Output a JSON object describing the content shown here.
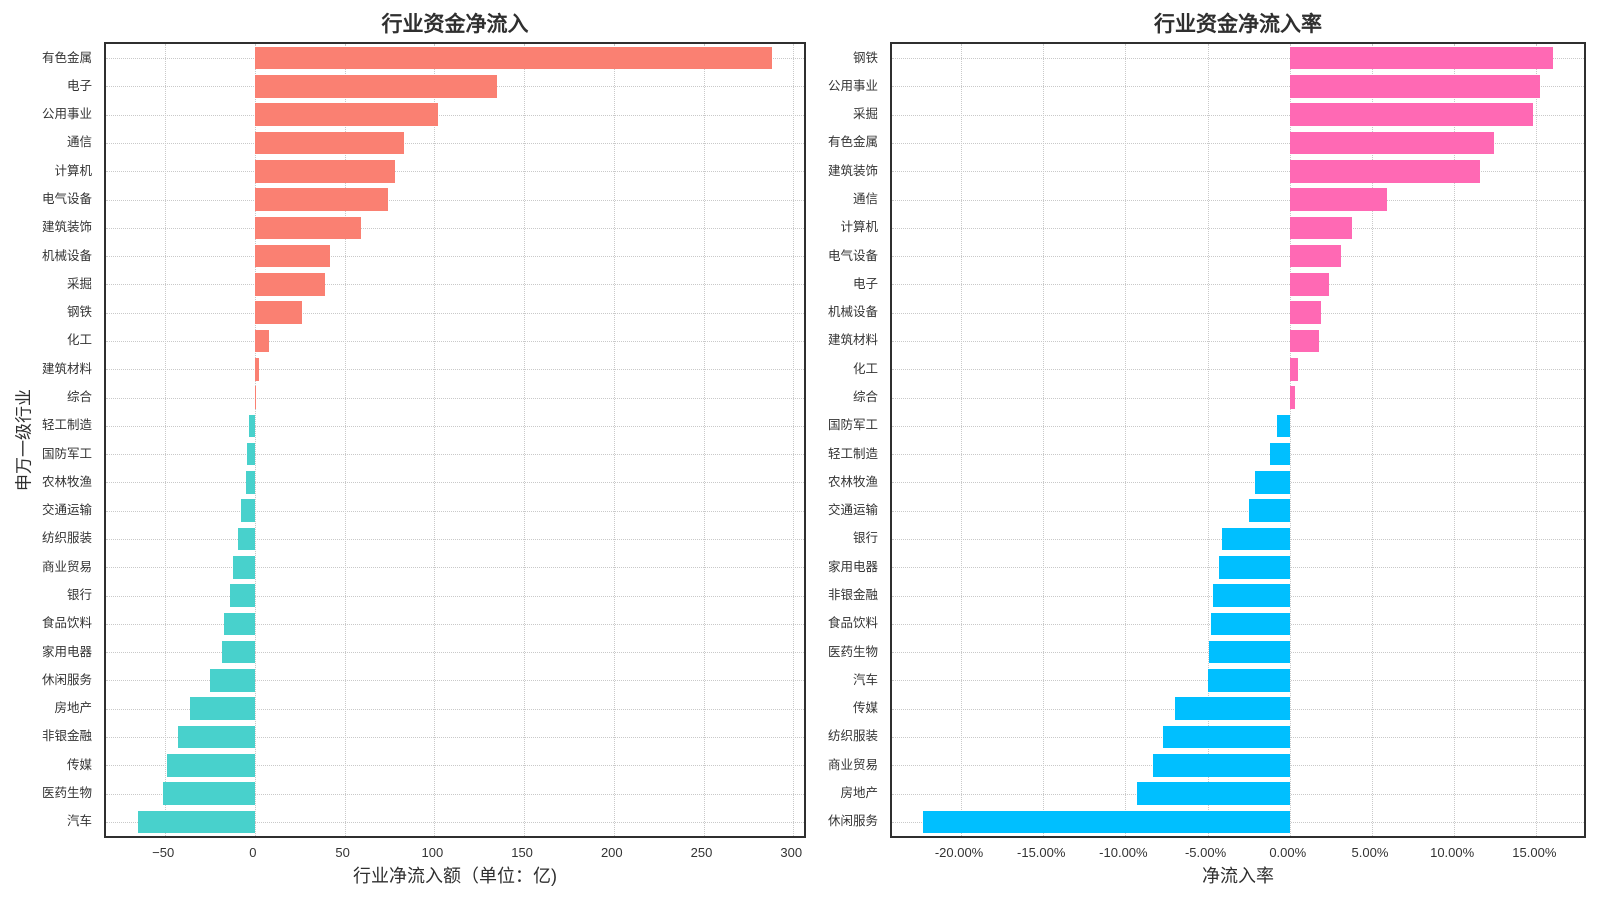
{
  "style": {
    "background": "#ffffff",
    "axis_color": "#2f2f2f",
    "grid_color": "#c9c9c9",
    "text_color": "#333333"
  },
  "chart_data": [
    {
      "type": "bar",
      "orientation": "horizontal",
      "title": "行业资金净流入",
      "xlabel": "行业净流入额（单位：亿)",
      "ylabel": "申万一级行业",
      "grid": true,
      "positive_color": "#FA8072",
      "negative_color": "#48D1CC",
      "xlim": [
        -83,
        306
      ],
      "categories": [
        "有色金属",
        "电子",
        "公用事业",
        "通信",
        "计算机",
        "电气设备",
        "建筑装饰",
        "机械设备",
        "采掘",
        "钢铁",
        "化工",
        "建筑材料",
        "综合",
        "轻工制造",
        "国防军工",
        "农林牧渔",
        "交通运输",
        "纺织服装",
        "商业贸易",
        "银行",
        "食品饮料",
        "家用电器",
        "休闲服务",
        "房地产",
        "非银金融",
        "传媒",
        "医药生物",
        "汽车"
      ],
      "values": [
        288,
        135,
        102,
        83,
        78,
        74,
        59,
        42,
        39,
        26,
        8,
        2,
        0.7,
        -3.4,
        -4.5,
        -4.8,
        -8,
        -9.3,
        -12.5,
        -14,
        -17,
        -18.5,
        -25,
        -36,
        -43,
        -49,
        -51,
        -65
      ],
      "xticks": [
        {
          "value": -50,
          "label": "−50"
        },
        {
          "value": 0,
          "label": "0"
        },
        {
          "value": 50,
          "label": "50"
        },
        {
          "value": 100,
          "label": "100"
        },
        {
          "value": 150,
          "label": "150"
        },
        {
          "value": 200,
          "label": "200"
        },
        {
          "value": 250,
          "label": "250"
        },
        {
          "value": 300,
          "label": "300"
        }
      ]
    },
    {
      "type": "bar",
      "orientation": "horizontal",
      "title": "行业资金净流入率",
      "xlabel": "净流入率",
      "ylabel": "",
      "grid": true,
      "positive_color": "#FF69B4",
      "negative_color": "#00BFFF",
      "xlim": [
        -24.2,
        17.9
      ],
      "categories": [
        "钢铁",
        "公用事业",
        "采掘",
        "有色金属",
        "建筑装饰",
        "通信",
        "计算机",
        "电气设备",
        "电子",
        "机械设备",
        "建筑材料",
        "化工",
        "综合",
        "国防军工",
        "轻工制造",
        "农林牧渔",
        "交通运输",
        "银行",
        "家用电器",
        "非银金融",
        "食品饮料",
        "医药生物",
        "汽车",
        "传媒",
        "纺织服装",
        "商业贸易",
        "房地产",
        "休闲服务"
      ],
      "values": [
        16.0,
        15.2,
        14.8,
        12.4,
        11.6,
        5.9,
        3.8,
        3.1,
        2.4,
        1.9,
        1.8,
        0.5,
        0.3,
        -0.8,
        -1.2,
        -2.1,
        -2.5,
        -4.1,
        -4.3,
        -4.7,
        -4.8,
        -4.9,
        -5.0,
        -7.0,
        -7.7,
        -8.3,
        -9.3,
        -22.3
      ],
      "xticks": [
        {
          "value": -20,
          "label": "-20.00%"
        },
        {
          "value": -15,
          "label": "-15.00%"
        },
        {
          "value": -10,
          "label": "-10.00%"
        },
        {
          "value": -5,
          "label": "-5.00%"
        },
        {
          "value": 0,
          "label": "0.00%"
        },
        {
          "value": 5,
          "label": "5.00%"
        },
        {
          "value": 10,
          "label": "10.00%"
        },
        {
          "value": 15,
          "label": "15.00%"
        }
      ]
    }
  ]
}
